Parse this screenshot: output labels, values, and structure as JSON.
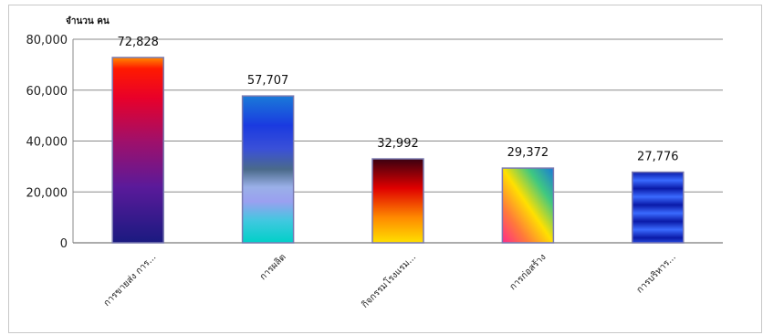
{
  "chart_data": {
    "type": "bar",
    "ylabel": "จำนวน คน",
    "ylim": [
      0,
      80000
    ],
    "yticks": [
      0,
      20000,
      40000,
      60000,
      80000
    ],
    "ytick_labels": [
      "0",
      "20,000",
      "40,000",
      "60,000",
      "80,000"
    ],
    "grid": true,
    "categories": [
      "การขายส่ง การ...",
      "การผลิต",
      "กิจกรรมโรงแรม...",
      "การก่อสร้าง",
      "การบริหาร..."
    ],
    "values": [
      72828,
      57707,
      32992,
      29372,
      27776
    ],
    "data_labels": [
      "72,828",
      "57,707",
      "32,992",
      "29,372",
      "27,776"
    ],
    "bar_fills": [
      "purple-red-gradient",
      "blue-cyan-banded",
      "dark-red-orange-yellow-gradient",
      "rainbow-diagonal-gradient",
      "blue-striped"
    ]
  }
}
